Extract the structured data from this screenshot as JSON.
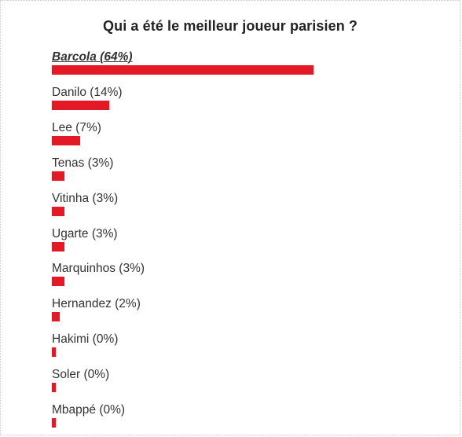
{
  "poll": {
    "title": "Qui a été le meilleur joueur parisien ?",
    "bar_color": "#e31a26",
    "options": [
      {
        "label": "Barcola (64%)",
        "percent": 64,
        "leading": true
      },
      {
        "label": "Danilo (14%)",
        "percent": 14,
        "leading": false
      },
      {
        "label": "Lee (7%)",
        "percent": 7,
        "leading": false
      },
      {
        "label": "Tenas (3%)",
        "percent": 3,
        "leading": false
      },
      {
        "label": "Vitinha (3%)",
        "percent": 3,
        "leading": false
      },
      {
        "label": "Ugarte (3%)",
        "percent": 3,
        "leading": false
      },
      {
        "label": "Marquinhos (3%)",
        "percent": 3,
        "leading": false
      },
      {
        "label": "Hernandez (2%)",
        "percent": 2,
        "leading": false
      },
      {
        "label": "Hakimi (0%)",
        "percent": 0,
        "leading": false
      },
      {
        "label": "Soler (0%)",
        "percent": 0,
        "leading": false
      },
      {
        "label": "Mbappé (0%)",
        "percent": 0,
        "leading": false
      }
    ]
  }
}
